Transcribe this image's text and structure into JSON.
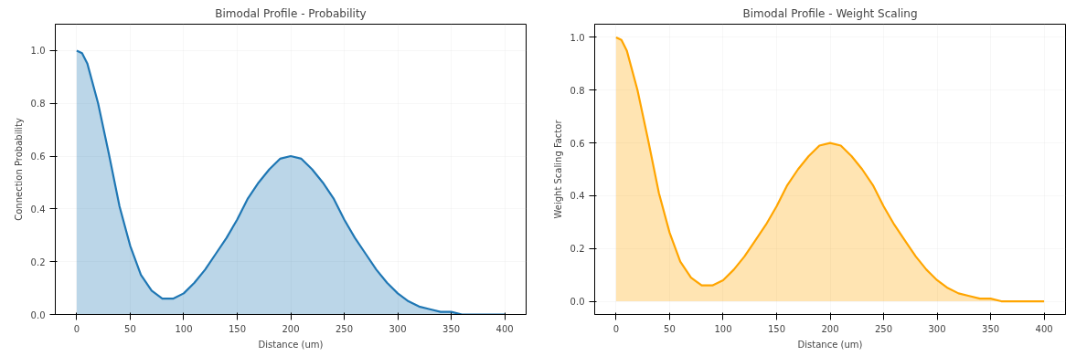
{
  "chart_data": [
    {
      "type": "area",
      "title": "Bimodal Profile - Probability",
      "xlabel": "Distance (um)",
      "ylabel": "Connection Probability",
      "x": [
        0,
        5,
        10,
        20,
        30,
        40,
        50,
        60,
        70,
        80,
        85,
        90,
        100,
        110,
        120,
        130,
        140,
        150,
        160,
        170,
        180,
        190,
        200,
        210,
        220,
        230,
        240,
        250,
        260,
        270,
        280,
        290,
        300,
        310,
        320,
        330,
        340,
        350,
        360,
        370,
        380,
        390,
        400
      ],
      "series": [
        {
          "color": "#1f77b4",
          "values": [
            1.0,
            0.99,
            0.95,
            0.8,
            0.61,
            0.41,
            0.26,
            0.15,
            0.09,
            0.06,
            0.06,
            0.06,
            0.08,
            0.12,
            0.17,
            0.23,
            0.29,
            0.36,
            0.44,
            0.5,
            0.55,
            0.59,
            0.6,
            0.59,
            0.55,
            0.5,
            0.44,
            0.36,
            0.29,
            0.23,
            0.17,
            0.12,
            0.08,
            0.05,
            0.03,
            0.02,
            0.01,
            0.01,
            0,
            0,
            0,
            0,
            0
          ]
        }
      ],
      "xlim": [
        -20,
        420
      ],
      "ylim": [
        0,
        1.1
      ],
      "xticks": [
        0,
        50,
        100,
        150,
        200,
        250,
        300,
        350,
        400
      ],
      "yticks": [
        {
          "value": 0,
          "label": "0.0"
        },
        {
          "value": 0.2,
          "label": "0.2"
        },
        {
          "value": 0.4,
          "label": "0.4"
        },
        {
          "value": 0.6,
          "label": "0.6"
        },
        {
          "value": 0.8,
          "label": "0.8"
        },
        {
          "value": 1,
          "label": "1.0"
        }
      ],
      "grid": true
    },
    {
      "type": "area",
      "title": "Bimodal Profile - Weight Scaling",
      "xlabel": "Distance (um)",
      "ylabel": "Weight Scaling Factor",
      "x": [
        0,
        5,
        10,
        20,
        30,
        40,
        50,
        60,
        70,
        80,
        85,
        90,
        100,
        110,
        120,
        130,
        140,
        150,
        160,
        170,
        180,
        190,
        200,
        210,
        220,
        230,
        240,
        250,
        260,
        270,
        280,
        290,
        300,
        310,
        320,
        330,
        340,
        350,
        360,
        370,
        380,
        390,
        400
      ],
      "series": [
        {
          "color": "#ffa500",
          "values": [
            1.0,
            0.99,
            0.95,
            0.8,
            0.61,
            0.41,
            0.26,
            0.15,
            0.09,
            0.06,
            0.06,
            0.06,
            0.08,
            0.12,
            0.17,
            0.23,
            0.29,
            0.36,
            0.44,
            0.5,
            0.55,
            0.59,
            0.6,
            0.59,
            0.55,
            0.5,
            0.44,
            0.36,
            0.29,
            0.23,
            0.17,
            0.12,
            0.08,
            0.05,
            0.03,
            0.02,
            0.01,
            0.01,
            0,
            0,
            0,
            0,
            0
          ]
        }
      ],
      "xlim": [
        -20,
        420
      ],
      "ylim": [
        -0.05,
        1.05
      ],
      "xticks": [
        0,
        50,
        100,
        150,
        200,
        250,
        300,
        350,
        400
      ],
      "yticks": [
        {
          "value": 0,
          "label": "0.0"
        },
        {
          "value": 0.2,
          "label": "0.2"
        },
        {
          "value": 0.4,
          "label": "0.4"
        },
        {
          "value": 0.6,
          "label": "0.6"
        },
        {
          "value": 0.8,
          "label": "0.8"
        },
        {
          "value": 1,
          "label": "1.0"
        }
      ],
      "grid": true
    }
  ]
}
